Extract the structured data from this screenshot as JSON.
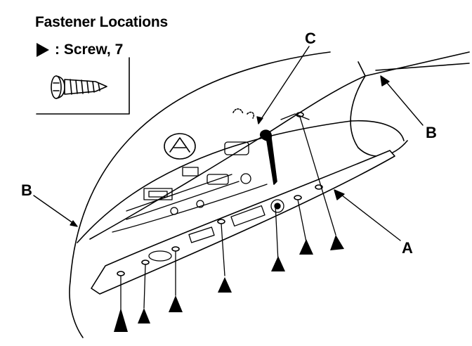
{
  "legend": {
    "title": "Fastener Locations",
    "item": ": Screw, 7",
    "symbol_icon": "solid-triangle-marker"
  },
  "callouts": {
    "a": "A",
    "b_right": "B",
    "b_left": "B",
    "c": "C"
  }
}
